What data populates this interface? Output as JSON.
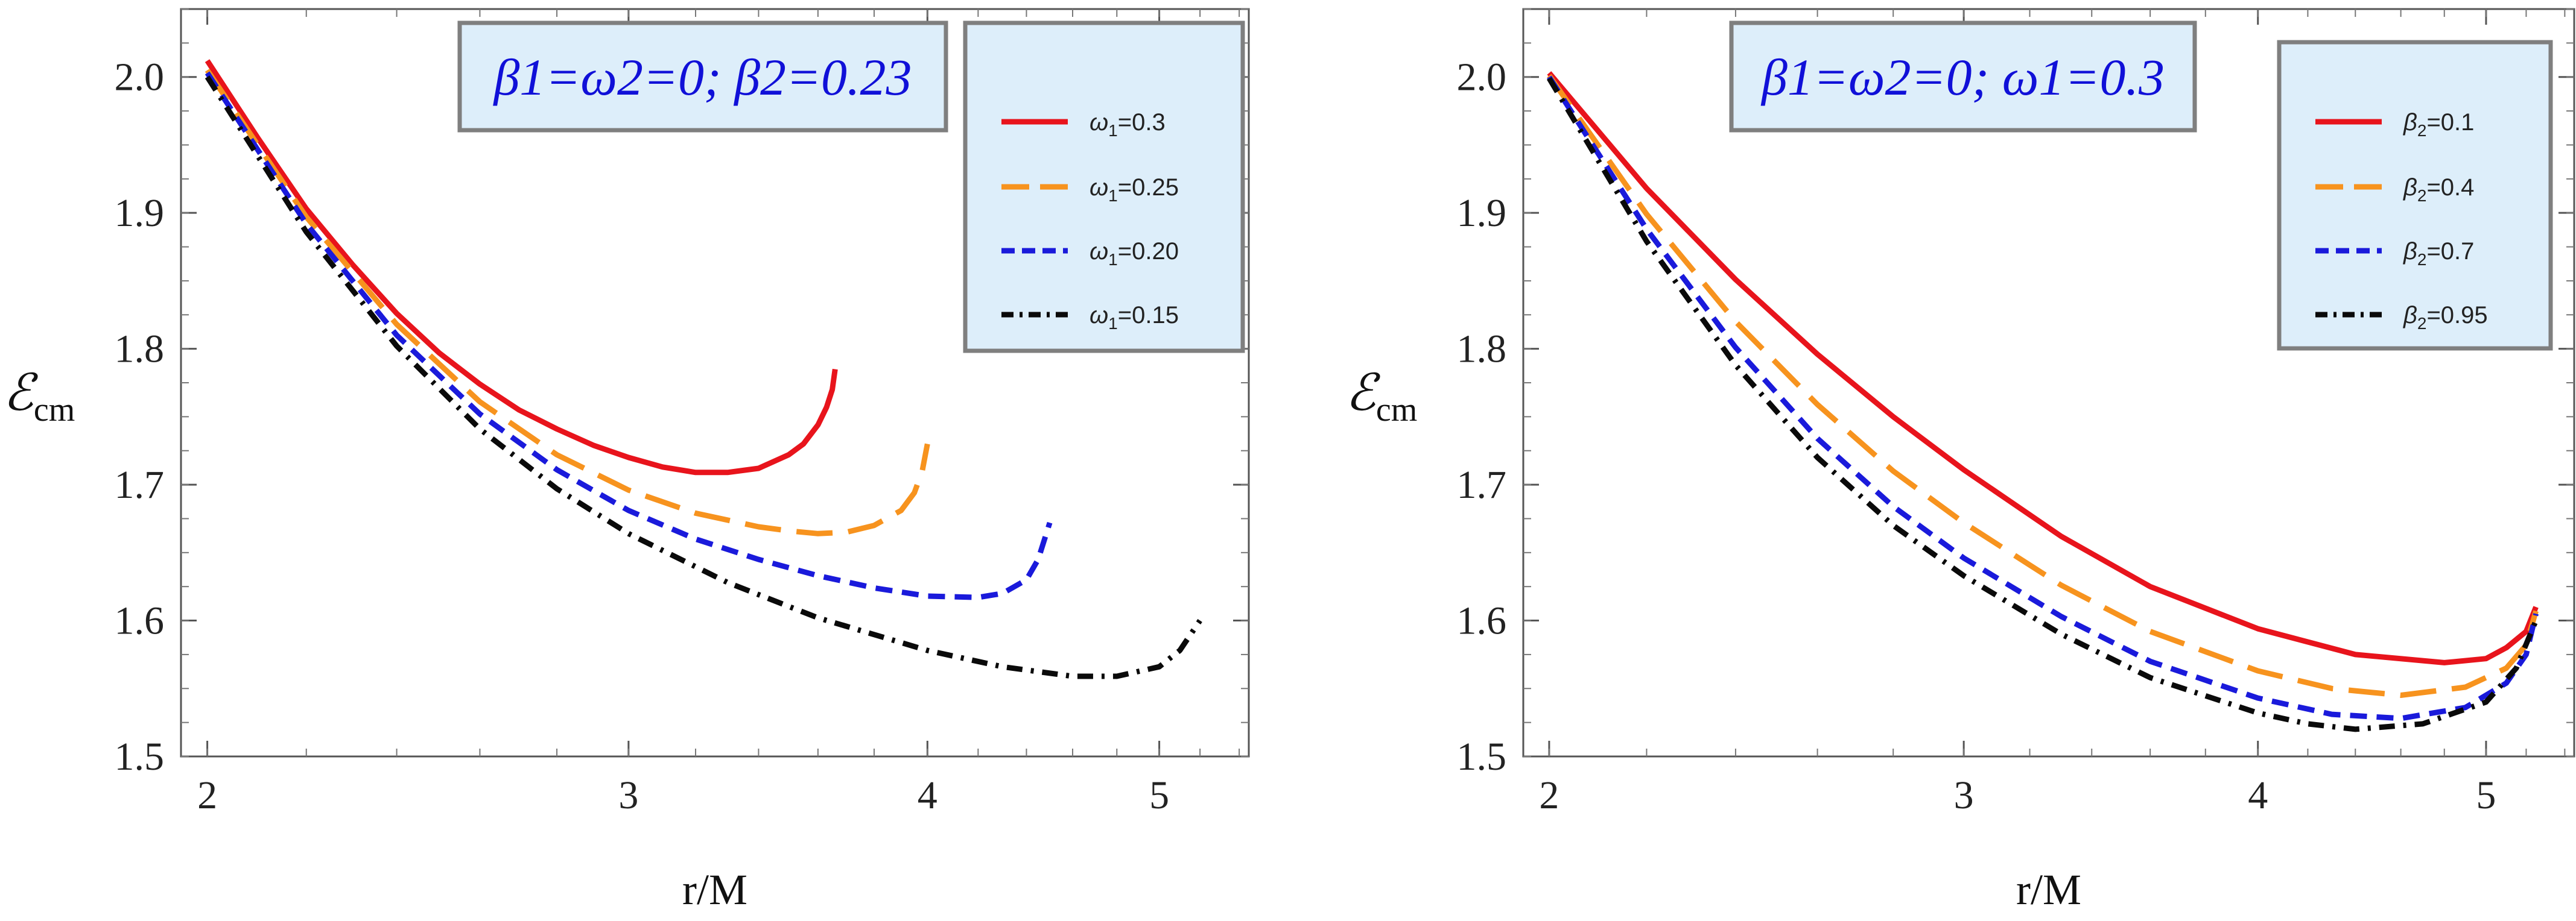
{
  "chart_data": [
    {
      "type": "line",
      "title": "β1=ω2=0; β2=0.23",
      "xlabel": "r/M",
      "ylabel": "ℰcm",
      "ylabel_main": "ℰ",
      "ylabel_sub": "cm",
      "x_scale": "log",
      "xlim": [
        1.95,
        5.45
      ],
      "ylim": [
        1.5,
        2.05
      ],
      "xticks": [
        2,
        3,
        4,
        5
      ],
      "xtick_labels": [
        "2",
        "3",
        "4",
        "5"
      ],
      "yticks": [
        1.5,
        1.6,
        1.7,
        1.8,
        1.9,
        2.0
      ],
      "ytick_labels": [
        "1.5",
        "1.6",
        "1.7",
        "1.8",
        "1.9",
        "2.0"
      ],
      "legend_position": "top-right",
      "series": [
        {
          "name": "ω1=0.3",
          "label_main": "ω",
          "label_sub": "1",
          "label_value": "=0.3",
          "color": "#e8141c",
          "style": "solid",
          "x": [
            2.0,
            2.1,
            2.2,
            2.3,
            2.4,
            2.5,
            2.6,
            2.7,
            2.8,
            2.9,
            3.0,
            3.1,
            3.2,
            3.3,
            3.4,
            3.5,
            3.55,
            3.6,
            3.63,
            3.65,
            3.66
          ],
          "y": [
            2.012,
            1.955,
            1.903,
            1.862,
            1.826,
            1.797,
            1.774,
            1.755,
            1.741,
            1.729,
            1.72,
            1.713,
            1.709,
            1.709,
            1.712,
            1.722,
            1.73,
            1.744,
            1.757,
            1.77,
            1.785
          ]
        },
        {
          "name": "ω1=0.25",
          "label_main": "ω",
          "label_sub": "1",
          "label_value": "=0.25",
          "color": "#f7931e",
          "style": "longdash",
          "x": [
            2.0,
            2.2,
            2.4,
            2.6,
            2.8,
            3.0,
            3.2,
            3.4,
            3.5,
            3.6,
            3.7,
            3.8,
            3.9,
            3.95,
            3.98,
            4.0
          ],
          "y": [
            2.005,
            1.897,
            1.818,
            1.761,
            1.722,
            1.696,
            1.679,
            1.669,
            1.666,
            1.664,
            1.665,
            1.67,
            1.681,
            1.694,
            1.71,
            1.73
          ]
        },
        {
          "name": "ω1=0.20",
          "label_main": "ω",
          "label_sub": "1",
          "label_value": "=0.20",
          "color": "#1a1adb",
          "style": "dashed",
          "x": [
            2.0,
            2.2,
            2.4,
            2.6,
            2.8,
            3.0,
            3.2,
            3.4,
            3.6,
            3.8,
            4.0,
            4.2,
            4.3,
            4.4,
            4.45,
            4.5
          ],
          "y": [
            2.003,
            1.892,
            1.81,
            1.752,
            1.711,
            1.681,
            1.66,
            1.645,
            1.633,
            1.624,
            1.618,
            1.617,
            1.62,
            1.63,
            1.645,
            1.672
          ]
        },
        {
          "name": "ω1=0.15",
          "label_main": "ω",
          "label_sub": "1",
          "label_value": "=0.15",
          "color": "#0a0a0a",
          "style": "dashdot",
          "x": [
            2.0,
            2.2,
            2.4,
            2.6,
            2.8,
            3.0,
            3.3,
            3.6,
            4.0,
            4.3,
            4.6,
            4.8,
            5.0,
            5.1,
            5.2
          ],
          "y": [
            2.0,
            1.886,
            1.802,
            1.741,
            1.697,
            1.664,
            1.628,
            1.602,
            1.578,
            1.566,
            1.559,
            1.559,
            1.566,
            1.578,
            1.6
          ]
        }
      ]
    },
    {
      "type": "line",
      "title": "β1=ω2=0; ω1=0.3",
      "xlabel": "r/M",
      "ylabel": "ℰcm",
      "ylabel_main": "ℰ",
      "ylabel_sub": "cm",
      "x_scale": "log",
      "xlim": [
        1.95,
        5.45
      ],
      "ylim": [
        1.5,
        2.05
      ],
      "xticks": [
        2,
        3,
        4,
        5
      ],
      "xtick_labels": [
        "2",
        "3",
        "4",
        "5"
      ],
      "yticks": [
        1.5,
        1.6,
        1.7,
        1.8,
        1.9,
        2.0
      ],
      "ytick_labels": [
        "1.5",
        "1.6",
        "1.7",
        "1.8",
        "1.9",
        "2.0"
      ],
      "legend_position": "top-right",
      "series": [
        {
          "name": "β2=0.1",
          "label_main": "β",
          "label_sub": "2",
          "label_value": "=0.1",
          "color": "#e8141c",
          "style": "solid",
          "x": [
            2.0,
            2.2,
            2.4,
            2.6,
            2.8,
            3.0,
            3.3,
            3.6,
            4.0,
            4.4,
            4.8,
            5.0,
            5.1,
            5.2,
            5.25
          ],
          "y": [
            2.003,
            1.918,
            1.851,
            1.796,
            1.75,
            1.711,
            1.662,
            1.625,
            1.594,
            1.575,
            1.569,
            1.572,
            1.58,
            1.592,
            1.61
          ]
        },
        {
          "name": "β2=0.4",
          "label_main": "β",
          "label_sub": "2",
          "label_value": "=0.4",
          "color": "#f7931e",
          "style": "longdash",
          "x": [
            2.0,
            2.2,
            2.4,
            2.6,
            2.8,
            3.0,
            3.3,
            3.6,
            4.0,
            4.3,
            4.6,
            4.9,
            5.1,
            5.2,
            5.25
          ],
          "y": [
            2.001,
            1.899,
            1.82,
            1.759,
            1.71,
            1.672,
            1.626,
            1.592,
            1.563,
            1.55,
            1.545,
            1.551,
            1.565,
            1.582,
            1.607
          ]
        },
        {
          "name": "β2=0.7",
          "label_main": "β",
          "label_sub": "2",
          "label_value": "=0.7",
          "color": "#1a1adb",
          "style": "dashed",
          "x": [
            2.0,
            2.2,
            2.4,
            2.6,
            2.8,
            3.0,
            3.3,
            3.6,
            4.0,
            4.3,
            4.6,
            4.9,
            5.1,
            5.2,
            5.25
          ],
          "y": [
            2.0,
            1.888,
            1.801,
            1.734,
            1.684,
            1.646,
            1.603,
            1.57,
            1.543,
            1.531,
            1.528,
            1.536,
            1.554,
            1.575,
            1.605
          ]
        },
        {
          "name": "β2=0.95",
          "label_main": "β",
          "label_sub": "2",
          "label_value": "=0.95",
          "color": "#0a0a0a",
          "style": "dashdot",
          "x": [
            2.0,
            2.2,
            2.4,
            2.6,
            2.8,
            3.0,
            3.3,
            3.6,
            4.0,
            4.2,
            4.4,
            4.7,
            5.0,
            5.15,
            5.25
          ],
          "y": [
            1.999,
            1.879,
            1.788,
            1.72,
            1.67,
            1.633,
            1.59,
            1.558,
            1.532,
            1.524,
            1.52,
            1.524,
            1.54,
            1.565,
            1.6
          ]
        }
      ]
    }
  ]
}
